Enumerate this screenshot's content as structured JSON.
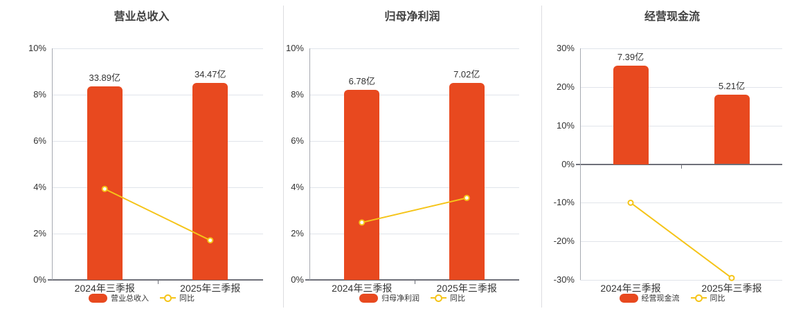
{
  "colors": {
    "bar": "#E8491F",
    "line": "#F5C418",
    "title_text": "#404040",
    "axis_text": "#333333",
    "grid_line": "#E0E4EA",
    "axis_line_light": "#A6A9B1",
    "axis_line_dark": "#6E7079",
    "panel_divider": "#DCDCE0",
    "marker_fill": "#FFFFFF",
    "background": "#FFFFFF"
  },
  "layout_hints": {
    "bar_max_fraction_of_axis": 0.85,
    "legend_position": "bottom",
    "grid": "horizontal-only",
    "bar_value_unit": "亿",
    "line_value_unit": "%"
  },
  "chart_data": [
    {
      "type": "bar+line",
      "title": "营业总收入",
      "categories": [
        "2024年三季报",
        "2025年三季报"
      ],
      "y_axis": {
        "min": 0,
        "max": 10,
        "step": 2,
        "tick_labels": [
          "0%",
          "2%",
          "4%",
          "6%",
          "8%",
          "10%"
        ]
      },
      "bar_series": {
        "name": "营业总收入",
        "unit": "亿",
        "values": [
          33.89,
          34.47
        ],
        "labels": [
          "33.89亿",
          "34.47亿"
        ]
      },
      "line_series": {
        "name": "同比",
        "values_pct": [
          3.93,
          1.71
        ]
      }
    },
    {
      "type": "bar+line",
      "title": "归母净利润",
      "categories": [
        "2024年三季报",
        "2025年三季报"
      ],
      "y_axis": {
        "min": 0,
        "max": 10,
        "step": 2,
        "tick_labels": [
          "0%",
          "2%",
          "4%",
          "6%",
          "8%",
          "10%"
        ]
      },
      "bar_series": {
        "name": "归母净利润",
        "unit": "亿",
        "values": [
          6.78,
          7.02
        ],
        "labels": [
          "6.78亿",
          "7.02亿"
        ]
      },
      "line_series": {
        "name": "同比",
        "values_pct": [
          2.48,
          3.54
        ]
      }
    },
    {
      "type": "bar+line",
      "title": "经营现金流",
      "categories": [
        "2024年三季报",
        "2025年三季报"
      ],
      "y_axis": {
        "min": -30,
        "max": 30,
        "step": 10,
        "tick_labels": [
          "-30%",
          "-20%",
          "-10%",
          "0%",
          "10%",
          "20%",
          "30%"
        ]
      },
      "bar_series": {
        "name": "经营现金流",
        "unit": "亿",
        "values": [
          7.39,
          5.21
        ],
        "labels": [
          "7.39亿",
          "5.21亿"
        ]
      },
      "line_series": {
        "name": "同比",
        "values_pct": [
          -10.0,
          -29.5
        ]
      }
    }
  ]
}
